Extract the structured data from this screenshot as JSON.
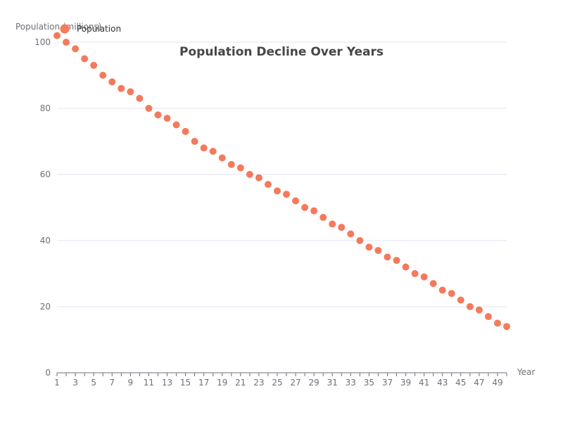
{
  "chart_data": {
    "type": "scatter",
    "title": "Population Decline Over Years",
    "xlabel": "Year",
    "ylabel": "Population (millions)",
    "xlim": [
      1,
      50
    ],
    "ylim": [
      0,
      100
    ],
    "x_ticks": [
      1,
      3,
      5,
      7,
      9,
      11,
      13,
      15,
      17,
      19,
      21,
      23,
      25,
      27,
      29,
      31,
      33,
      35,
      37,
      39,
      41,
      43,
      45,
      47,
      49
    ],
    "y_ticks": [
      0,
      20,
      40,
      60,
      80,
      100
    ],
    "grid": true,
    "legend_position": "top-left",
    "series": [
      {
        "name": "Population",
        "color": "#f47a5c",
        "x": [
          1,
          2,
          3,
          4,
          5,
          6,
          7,
          8,
          9,
          10,
          11,
          12,
          13,
          14,
          15,
          16,
          17,
          18,
          19,
          20,
          21,
          22,
          23,
          24,
          25,
          26,
          27,
          28,
          29,
          30,
          31,
          32,
          33,
          34,
          35,
          36,
          37,
          38,
          39,
          40,
          41,
          42,
          43,
          44,
          45,
          46,
          47,
          48,
          49,
          50
        ],
        "y": [
          102,
          100,
          98,
          95,
          93,
          90,
          88,
          86,
          85,
          83,
          80,
          78,
          77,
          75,
          73,
          70,
          68,
          67,
          65,
          63,
          62,
          60,
          59,
          57,
          55,
          54,
          52,
          50,
          49,
          47,
          45,
          44,
          42,
          40,
          38,
          37,
          35,
          34,
          32,
          30,
          29,
          27,
          25,
          24,
          22,
          20,
          19,
          17,
          15,
          14
        ]
      }
    ]
  }
}
